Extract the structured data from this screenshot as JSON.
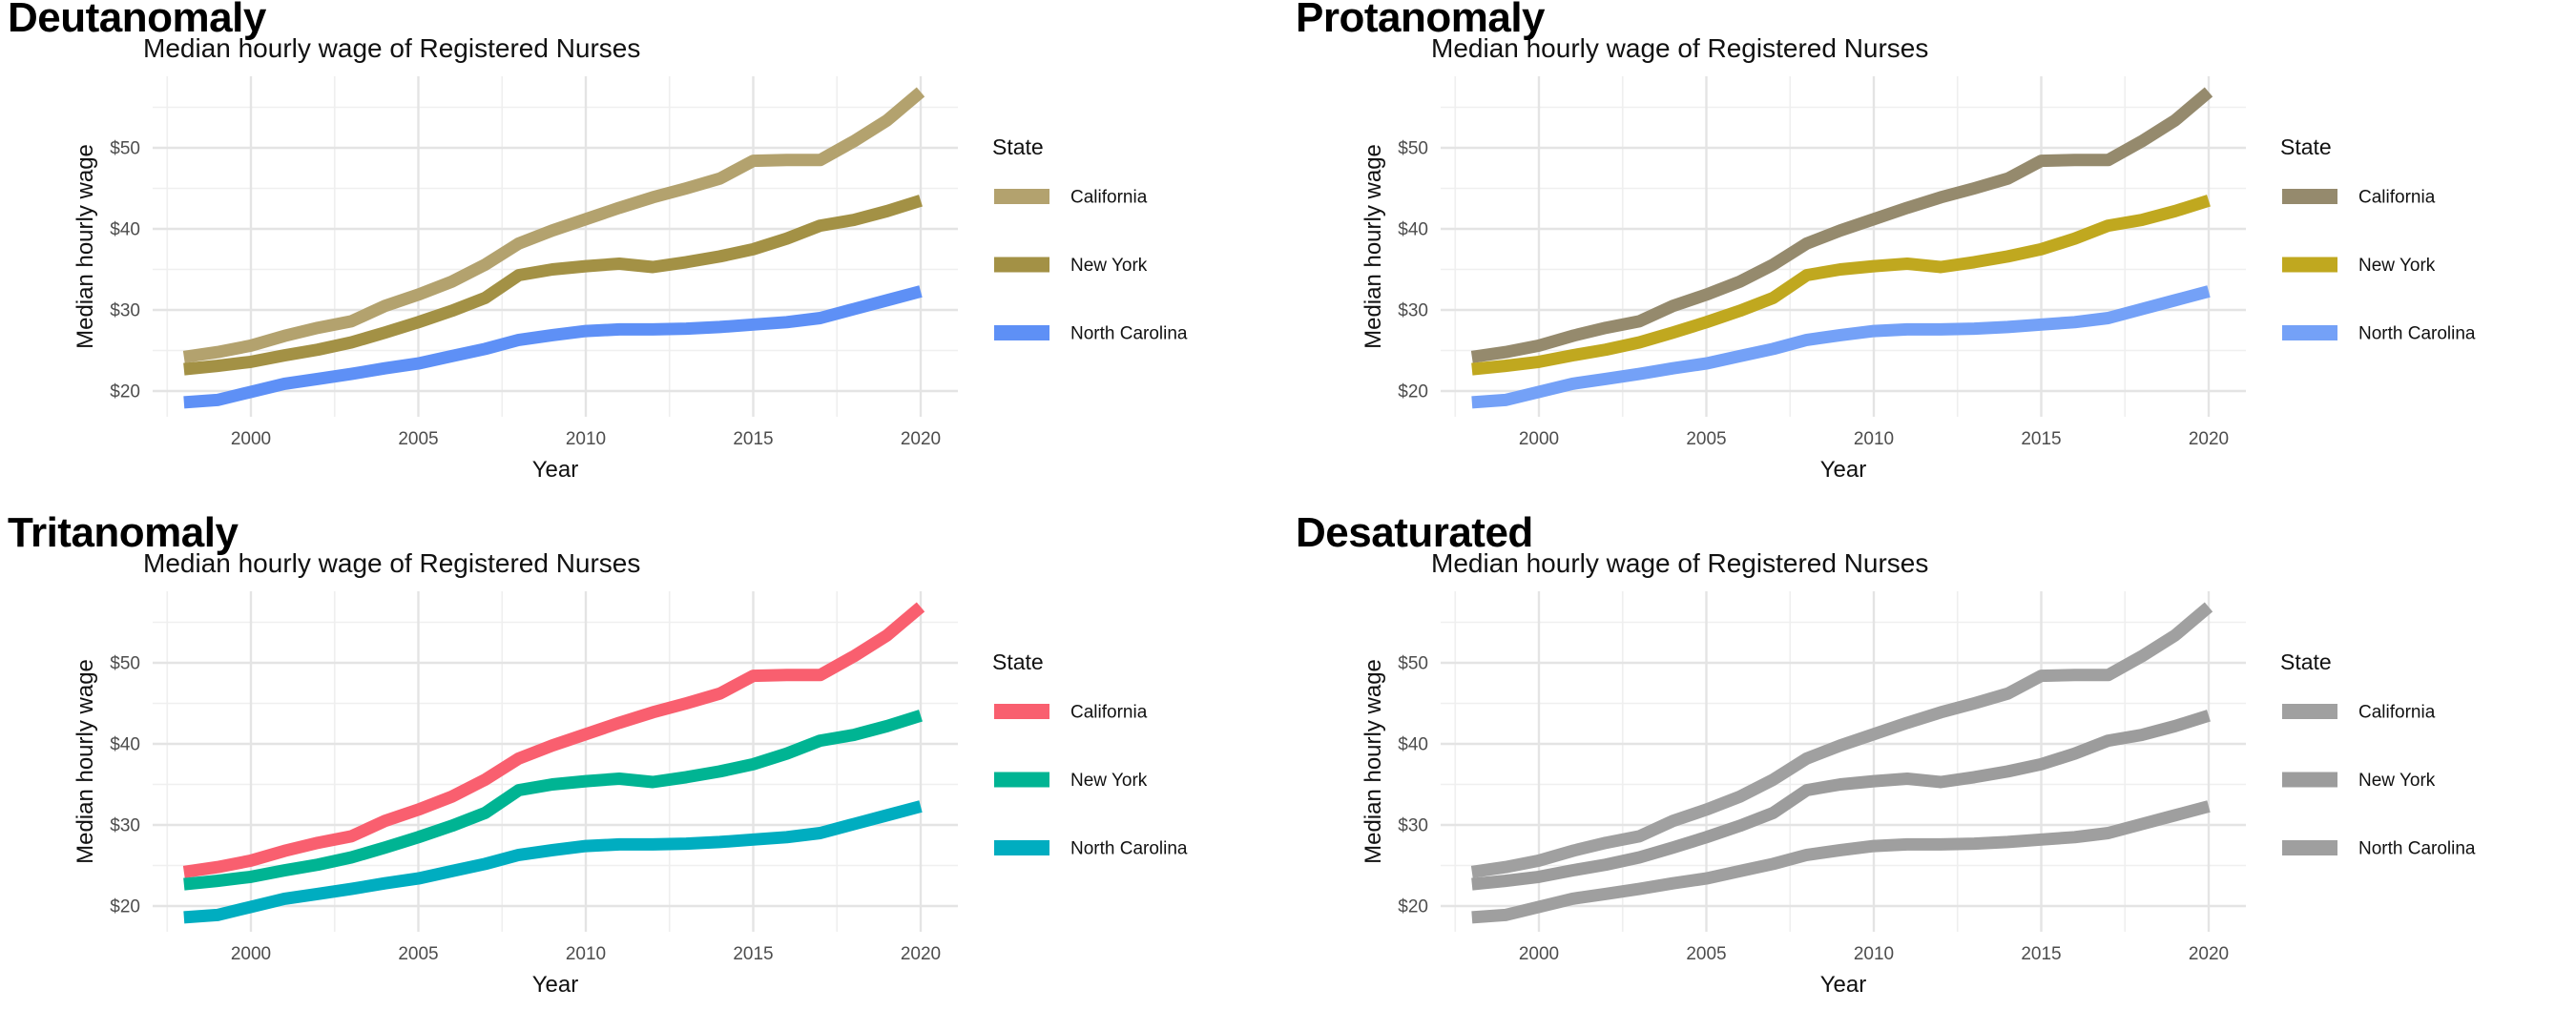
{
  "shared": {
    "subtitle": "Median hourly wage of Registered Nurses",
    "xlabel": "Year",
    "ylabel": "Median hourly wage",
    "legend_title": "State",
    "x_tick_labels": [
      "2000",
      "2005",
      "2010",
      "2015",
      "2020"
    ],
    "y_tick_labels": [
      "$20",
      "$30",
      "$40",
      "$50"
    ],
    "grid_major_color": "#e4e4e4",
    "grid_minor_color": "#efefef",
    "tick_label_color": "#4d4d4d",
    "text_color": "#111111"
  },
  "panels": [
    {
      "title": "Deutanomaly"
    },
    {
      "title": "Protanomaly"
    },
    {
      "title": "Tritanomaly"
    },
    {
      "title": "Desaturated"
    }
  ],
  "chart_data": [
    {
      "type": "line",
      "panel_title": "Deutanomaly",
      "title": "Median hourly wage of Registered Nurses",
      "xlabel": "Year",
      "ylabel": "Median hourly wage",
      "legend_title": "State",
      "legend_position": "right",
      "grid": true,
      "xlim": [
        1996.9,
        2021.2
      ],
      "ylim": [
        15.0,
        58.8
      ],
      "x_ticks": [
        2000,
        2005,
        2010,
        2015,
        2020
      ],
      "y_ticks": [
        20,
        30,
        40,
        50
      ],
      "y_tick_labels": [
        "$20",
        "$30",
        "$40",
        "$50"
      ],
      "x": [
        1998,
        1999,
        2000,
        2001,
        2002,
        2003,
        2004,
        2005,
        2006,
        2007,
        2008,
        2009,
        2010,
        2011,
        2012,
        2013,
        2014,
        2015,
        2016,
        2017,
        2018,
        2019,
        2020
      ],
      "series": [
        {
          "name": "California",
          "color": "#b3a26e",
          "values": [
            24.2,
            24.8,
            25.6,
            26.8,
            27.8,
            28.6,
            30.5,
            31.9,
            33.5,
            35.6,
            38.2,
            39.8,
            41.2,
            42.6,
            43.9,
            45.0,
            46.2,
            48.4,
            48.5,
            48.5,
            50.8,
            53.4,
            56.9
          ]
        },
        {
          "name": "New York",
          "color": "#a39145",
          "values": [
            22.7,
            23.1,
            23.6,
            24.4,
            25.1,
            26.0,
            27.2,
            28.5,
            29.9,
            31.5,
            34.3,
            35.0,
            35.4,
            35.7,
            35.3,
            35.9,
            36.6,
            37.5,
            38.8,
            40.4,
            41.1,
            42.2,
            43.5
          ]
        },
        {
          "name": "North Carolina",
          "color": "#5e90f6",
          "values": [
            18.6,
            18.9,
            19.9,
            20.9,
            21.5,
            22.1,
            22.8,
            23.4,
            24.3,
            25.2,
            26.3,
            26.9,
            27.4,
            27.6,
            27.6,
            27.7,
            27.9,
            28.2,
            28.5,
            29.0,
            30.1,
            31.2,
            32.3
          ]
        }
      ]
    },
    {
      "type": "line",
      "panel_title": "Protanomaly",
      "title": "Median hourly wage of Registered Nurses",
      "xlabel": "Year",
      "ylabel": "Median hourly wage",
      "legend_title": "State",
      "legend_position": "right",
      "grid": true,
      "xlim": [
        1996.9,
        2021.2
      ],
      "ylim": [
        15.0,
        58.8
      ],
      "x_ticks": [
        2000,
        2005,
        2010,
        2015,
        2020
      ],
      "y_ticks": [
        20,
        30,
        40,
        50
      ],
      "y_tick_labels": [
        "$20",
        "$30",
        "$40",
        "$50"
      ],
      "x": [
        1998,
        1999,
        2000,
        2001,
        2002,
        2003,
        2004,
        2005,
        2006,
        2007,
        2008,
        2009,
        2010,
        2011,
        2012,
        2013,
        2014,
        2015,
        2016,
        2017,
        2018,
        2019,
        2020
      ],
      "series": [
        {
          "name": "California",
          "color": "#958a6d",
          "values": [
            24.2,
            24.8,
            25.6,
            26.8,
            27.8,
            28.6,
            30.5,
            31.9,
            33.5,
            35.6,
            38.2,
            39.8,
            41.2,
            42.6,
            43.9,
            45.0,
            46.2,
            48.4,
            48.5,
            48.5,
            50.8,
            53.4,
            56.9
          ]
        },
        {
          "name": "New York",
          "color": "#c0a81f",
          "values": [
            22.7,
            23.1,
            23.6,
            24.4,
            25.1,
            26.0,
            27.2,
            28.5,
            29.9,
            31.5,
            34.3,
            35.0,
            35.4,
            35.7,
            35.3,
            35.9,
            36.6,
            37.5,
            38.8,
            40.4,
            41.1,
            42.2,
            43.5
          ]
        },
        {
          "name": "North Carolina",
          "color": "#74a1f7",
          "values": [
            18.6,
            18.9,
            19.9,
            20.9,
            21.5,
            22.1,
            22.8,
            23.4,
            24.3,
            25.2,
            26.3,
            26.9,
            27.4,
            27.6,
            27.6,
            27.7,
            27.9,
            28.2,
            28.5,
            29.0,
            30.1,
            31.2,
            32.3
          ]
        }
      ]
    },
    {
      "type": "line",
      "panel_title": "Tritanomaly",
      "title": "Median hourly wage of Registered Nurses",
      "xlabel": "Year",
      "ylabel": "Median hourly wage",
      "legend_title": "State",
      "legend_position": "right",
      "grid": true,
      "xlim": [
        1996.9,
        2021.2
      ],
      "ylim": [
        15.0,
        58.8
      ],
      "x_ticks": [
        2000,
        2005,
        2010,
        2015,
        2020
      ],
      "y_ticks": [
        20,
        30,
        40,
        50
      ],
      "y_tick_labels": [
        "$20",
        "$30",
        "$40",
        "$50"
      ],
      "x": [
        1998,
        1999,
        2000,
        2001,
        2002,
        2003,
        2004,
        2005,
        2006,
        2007,
        2008,
        2009,
        2010,
        2011,
        2012,
        2013,
        2014,
        2015,
        2016,
        2017,
        2018,
        2019,
        2020
      ],
      "series": [
        {
          "name": "California",
          "color": "#f95f6f",
          "values": [
            24.2,
            24.8,
            25.6,
            26.8,
            27.8,
            28.6,
            30.5,
            31.9,
            33.5,
            35.6,
            38.2,
            39.8,
            41.2,
            42.6,
            43.9,
            45.0,
            46.2,
            48.4,
            48.5,
            48.5,
            50.8,
            53.4,
            56.9
          ]
        },
        {
          "name": "New York",
          "color": "#00b493",
          "values": [
            22.7,
            23.1,
            23.6,
            24.4,
            25.1,
            26.0,
            27.2,
            28.5,
            29.9,
            31.5,
            34.3,
            35.0,
            35.4,
            35.7,
            35.3,
            35.9,
            36.6,
            37.5,
            38.8,
            40.4,
            41.1,
            42.2,
            43.5
          ]
        },
        {
          "name": "North Carolina",
          "color": "#00adc0",
          "values": [
            18.6,
            18.9,
            19.9,
            20.9,
            21.5,
            22.1,
            22.8,
            23.4,
            24.3,
            25.2,
            26.3,
            26.9,
            27.4,
            27.6,
            27.6,
            27.7,
            27.9,
            28.2,
            28.5,
            29.0,
            30.1,
            31.2,
            32.3
          ]
        }
      ]
    },
    {
      "type": "line",
      "panel_title": "Desaturated",
      "title": "Median hourly wage of Registered Nurses",
      "xlabel": "Year",
      "ylabel": "Median hourly wage",
      "legend_title": "State",
      "legend_position": "right",
      "grid": true,
      "xlim": [
        1996.9,
        2021.2
      ],
      "ylim": [
        15.0,
        58.8
      ],
      "x_ticks": [
        2000,
        2005,
        2010,
        2015,
        2020
      ],
      "y_ticks": [
        20,
        30,
        40,
        50
      ],
      "y_tick_labels": [
        "$20",
        "$30",
        "$40",
        "$50"
      ],
      "x": [
        1998,
        1999,
        2000,
        2001,
        2002,
        2003,
        2004,
        2005,
        2006,
        2007,
        2008,
        2009,
        2010,
        2011,
        2012,
        2013,
        2014,
        2015,
        2016,
        2017,
        2018,
        2019,
        2020
      ],
      "series": [
        {
          "name": "California",
          "color": "#a0a0a0",
          "values": [
            24.2,
            24.8,
            25.6,
            26.8,
            27.8,
            28.6,
            30.5,
            31.9,
            33.5,
            35.6,
            38.2,
            39.8,
            41.2,
            42.6,
            43.9,
            45.0,
            46.2,
            48.4,
            48.5,
            48.5,
            50.8,
            53.4,
            56.9
          ]
        },
        {
          "name": "New York",
          "color": "#9c9c9c",
          "values": [
            22.7,
            23.1,
            23.6,
            24.4,
            25.1,
            26.0,
            27.2,
            28.5,
            29.9,
            31.5,
            34.3,
            35.0,
            35.4,
            35.7,
            35.3,
            35.9,
            36.6,
            37.5,
            38.8,
            40.4,
            41.1,
            42.2,
            43.5
          ]
        },
        {
          "name": "North Carolina",
          "color": "#9f9f9f",
          "values": [
            18.6,
            18.9,
            19.9,
            20.9,
            21.5,
            22.1,
            22.8,
            23.4,
            24.3,
            25.2,
            26.3,
            26.9,
            27.4,
            27.6,
            27.6,
            27.7,
            27.9,
            28.2,
            28.5,
            29.0,
            30.1,
            31.2,
            32.3
          ]
        }
      ]
    }
  ]
}
